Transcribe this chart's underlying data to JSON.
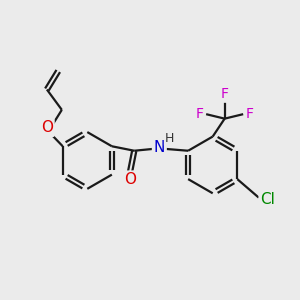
{
  "background_color": "#ebebeb",
  "bond_color": "#1a1a1a",
  "atom_colors": {
    "O": "#dd0000",
    "N": "#0000cc",
    "F": "#cc00cc",
    "Cl": "#008800",
    "C": "#1a1a1a",
    "H": "#333333"
  },
  "bond_width": 1.6,
  "font_size": 10,
  "fig_size": [
    3.0,
    3.0
  ],
  "dpi": 100
}
